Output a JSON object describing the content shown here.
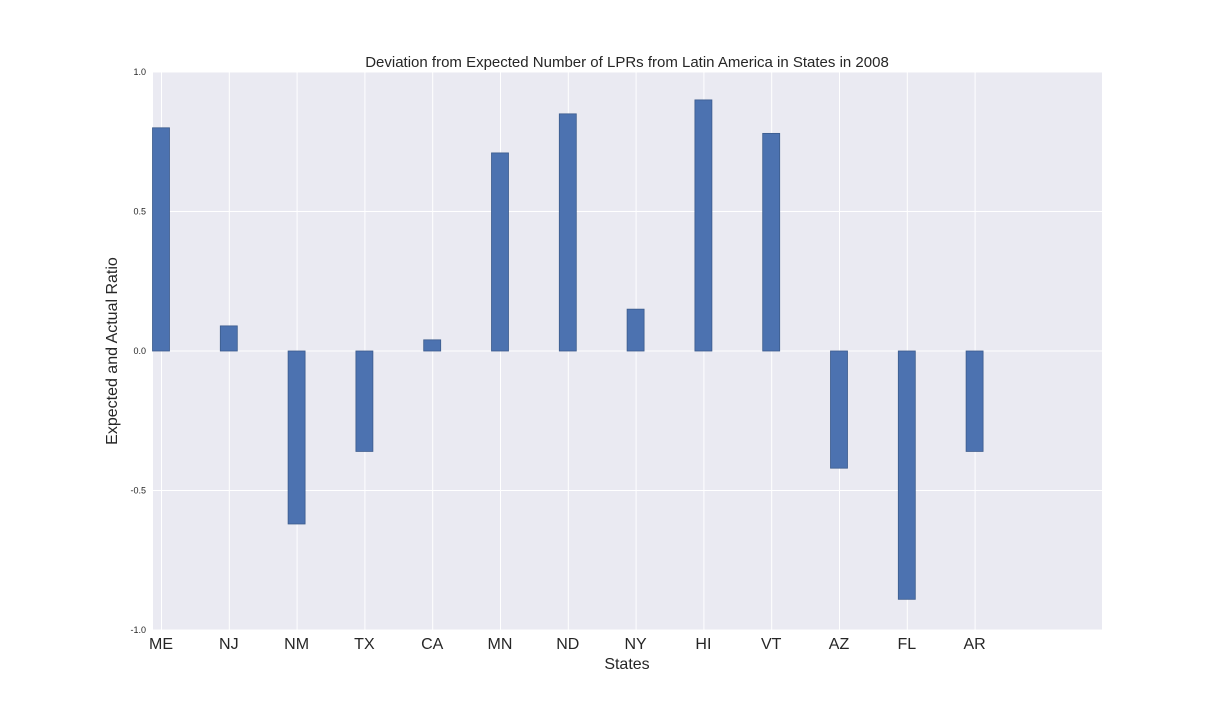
{
  "chart_data": {
    "type": "bar",
    "title": "Deviation from Expected Number of LPRs from Latin America in States in 2008",
    "xlabel": "States",
    "ylabel": "Expected and Actual Ratio",
    "categories": [
      "ME",
      "NJ",
      "NM",
      "TX",
      "CA",
      "MN",
      "ND",
      "NY",
      "HI",
      "VT",
      "AZ",
      "FL",
      "AR"
    ],
    "values": [
      0.8,
      0.09,
      -0.62,
      -0.36,
      0.04,
      0.71,
      0.85,
      0.15,
      0.9,
      0.78,
      -0.42,
      -0.89,
      -0.36
    ],
    "ylim": [
      -1.0,
      1.0
    ],
    "yticks": [
      "-1.0",
      "-0.5",
      "0.0",
      "0.5",
      "1.0"
    ],
    "grid": true,
    "colors": {
      "bar": "#4c72b0",
      "bar_edge": "#3b5b8c",
      "plot_bg": "#eaeaf2",
      "grid": "#ffffff"
    }
  }
}
